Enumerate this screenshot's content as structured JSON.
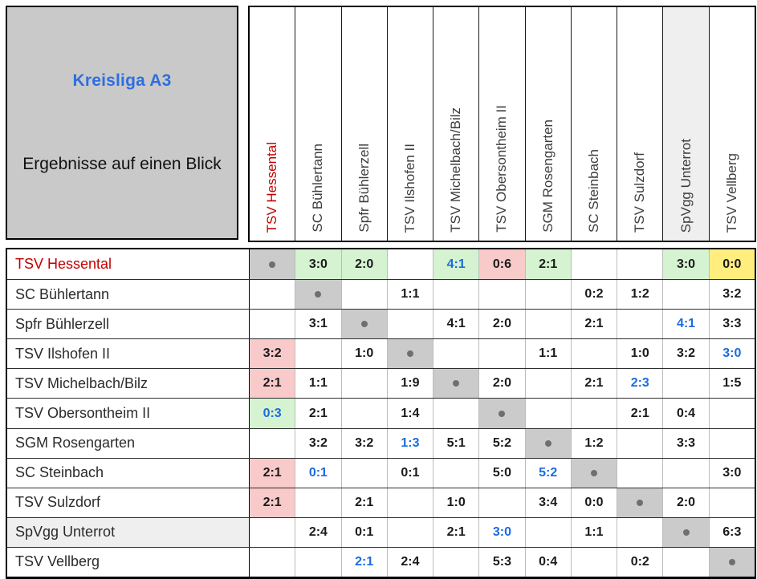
{
  "info_box": {
    "title": "Kreisliga A3",
    "separator": "________________________________________",
    "subtitle": "Ergebnisse auf einen Blick"
  },
  "colors": {
    "win_green": "#d5f3d1",
    "loss_red": "#f9caca",
    "draw_yellow": "#ffee7e",
    "diagonal_gray": "#cbcbcb",
    "highlight_team_red": "#c00000",
    "accent_blue": "#1a6be0",
    "info_box_gray": "#c9c9c9",
    "muted_row_gray": "#efefef"
  },
  "chart_data": {
    "type": "table",
    "title": "Kreisliga A3 — Ergebnisse auf einen Blick",
    "teams": [
      {
        "name": "TSV Hessental",
        "style": "red"
      },
      {
        "name": "SC Bühlertann",
        "style": ""
      },
      {
        "name": "Spfr Bühlerzell",
        "style": ""
      },
      {
        "name": "TSV Ilshofen II",
        "style": ""
      },
      {
        "name": "TSV Michelbach/Bilz",
        "style": ""
      },
      {
        "name": "TSV Obersontheim II",
        "style": ""
      },
      {
        "name": "SGM Rosengarten",
        "style": ""
      },
      {
        "name": "SC Steinbach",
        "style": ""
      },
      {
        "name": "TSV Sulzdorf",
        "style": ""
      },
      {
        "name": "SpVgg Unterrot",
        "style": "muted"
      },
      {
        "name": "TSV Vellberg",
        "style": ""
      }
    ],
    "matrix": [
      [
        [
          "•",
          "diag",
          ""
        ],
        [
          "3:0",
          "win",
          ""
        ],
        [
          "2:0",
          "win",
          ""
        ],
        null,
        [
          "4:1",
          "win",
          "blue"
        ],
        [
          "0:6",
          "loss",
          ""
        ],
        [
          "2:1",
          "win",
          ""
        ],
        null,
        null,
        [
          "3:0",
          "win",
          ""
        ],
        [
          "0:0",
          "draw",
          ""
        ]
      ],
      [
        null,
        [
          "•",
          "diag",
          ""
        ],
        null,
        [
          "1:1",
          "",
          ""
        ],
        null,
        null,
        null,
        [
          "0:2",
          "",
          ""
        ],
        [
          "1:2",
          "",
          ""
        ],
        null,
        [
          "3:2",
          "",
          ""
        ]
      ],
      [
        null,
        [
          "3:1",
          "",
          ""
        ],
        [
          "•",
          "diag",
          ""
        ],
        null,
        [
          "4:1",
          "",
          ""
        ],
        [
          "2:0",
          "",
          ""
        ],
        null,
        [
          "2:1",
          "",
          ""
        ],
        null,
        [
          "4:1",
          "",
          "blue"
        ],
        [
          "3:3",
          "",
          ""
        ]
      ],
      [
        [
          "3:2",
          "loss",
          ""
        ],
        null,
        [
          "1:0",
          "",
          ""
        ],
        [
          "•",
          "diag",
          ""
        ],
        null,
        null,
        [
          "1:1",
          "",
          ""
        ],
        null,
        [
          "1:0",
          "",
          ""
        ],
        [
          "3:2",
          "",
          ""
        ],
        [
          "3:0",
          "",
          "blue"
        ]
      ],
      [
        [
          "2:1",
          "loss",
          ""
        ],
        [
          "1:1",
          "",
          ""
        ],
        null,
        [
          "1:9",
          "",
          ""
        ],
        [
          "•",
          "diag",
          ""
        ],
        [
          "2:0",
          "",
          ""
        ],
        null,
        [
          "2:1",
          "",
          ""
        ],
        [
          "2:3",
          "",
          "blue"
        ],
        null,
        [
          "1:5",
          "",
          ""
        ]
      ],
      [
        [
          "0:3",
          "win",
          "blue"
        ],
        [
          "2:1",
          "",
          ""
        ],
        null,
        [
          "1:4",
          "",
          ""
        ],
        null,
        [
          "•",
          "diag",
          ""
        ],
        null,
        null,
        [
          "2:1",
          "",
          ""
        ],
        [
          "0:4",
          "",
          ""
        ],
        null
      ],
      [
        null,
        [
          "3:2",
          "",
          ""
        ],
        [
          "3:2",
          "",
          ""
        ],
        [
          "1:3",
          "",
          "blue"
        ],
        [
          "5:1",
          "",
          ""
        ],
        [
          "5:2",
          "",
          ""
        ],
        [
          "•",
          "diag",
          ""
        ],
        [
          "1:2",
          "",
          ""
        ],
        null,
        [
          "3:3",
          "",
          ""
        ],
        null
      ],
      [
        [
          "2:1",
          "loss",
          ""
        ],
        [
          "0:1",
          "",
          "blue"
        ],
        null,
        [
          "0:1",
          "",
          ""
        ],
        null,
        [
          "5:0",
          "",
          ""
        ],
        [
          "5:2",
          "",
          "blue"
        ],
        [
          "•",
          "diag",
          ""
        ],
        null,
        null,
        [
          "3:0",
          "",
          ""
        ]
      ],
      [
        [
          "2:1",
          "loss",
          ""
        ],
        null,
        [
          "2:1",
          "",
          ""
        ],
        null,
        [
          "1:0",
          "",
          ""
        ],
        null,
        [
          "3:4",
          "",
          ""
        ],
        [
          "0:0",
          "",
          ""
        ],
        [
          "•",
          "diag",
          ""
        ],
        [
          "2:0",
          "",
          ""
        ],
        null
      ],
      [
        null,
        [
          "2:4",
          "",
          ""
        ],
        [
          "0:1",
          "",
          ""
        ],
        null,
        [
          "2:1",
          "",
          ""
        ],
        [
          "3:0",
          "",
          "blue"
        ],
        null,
        [
          "1:1",
          "",
          ""
        ],
        null,
        [
          "•",
          "diag",
          ""
        ],
        [
          "6:3",
          "",
          ""
        ]
      ],
      [
        null,
        null,
        [
          "2:1",
          "",
          "blue"
        ],
        [
          "2:4",
          "",
          ""
        ],
        null,
        [
          "5:3",
          "",
          ""
        ],
        [
          "0:4",
          "",
          ""
        ],
        null,
        [
          "0:2",
          "",
          ""
        ],
        null,
        [
          "•",
          "diag",
          ""
        ]
      ]
    ]
  }
}
